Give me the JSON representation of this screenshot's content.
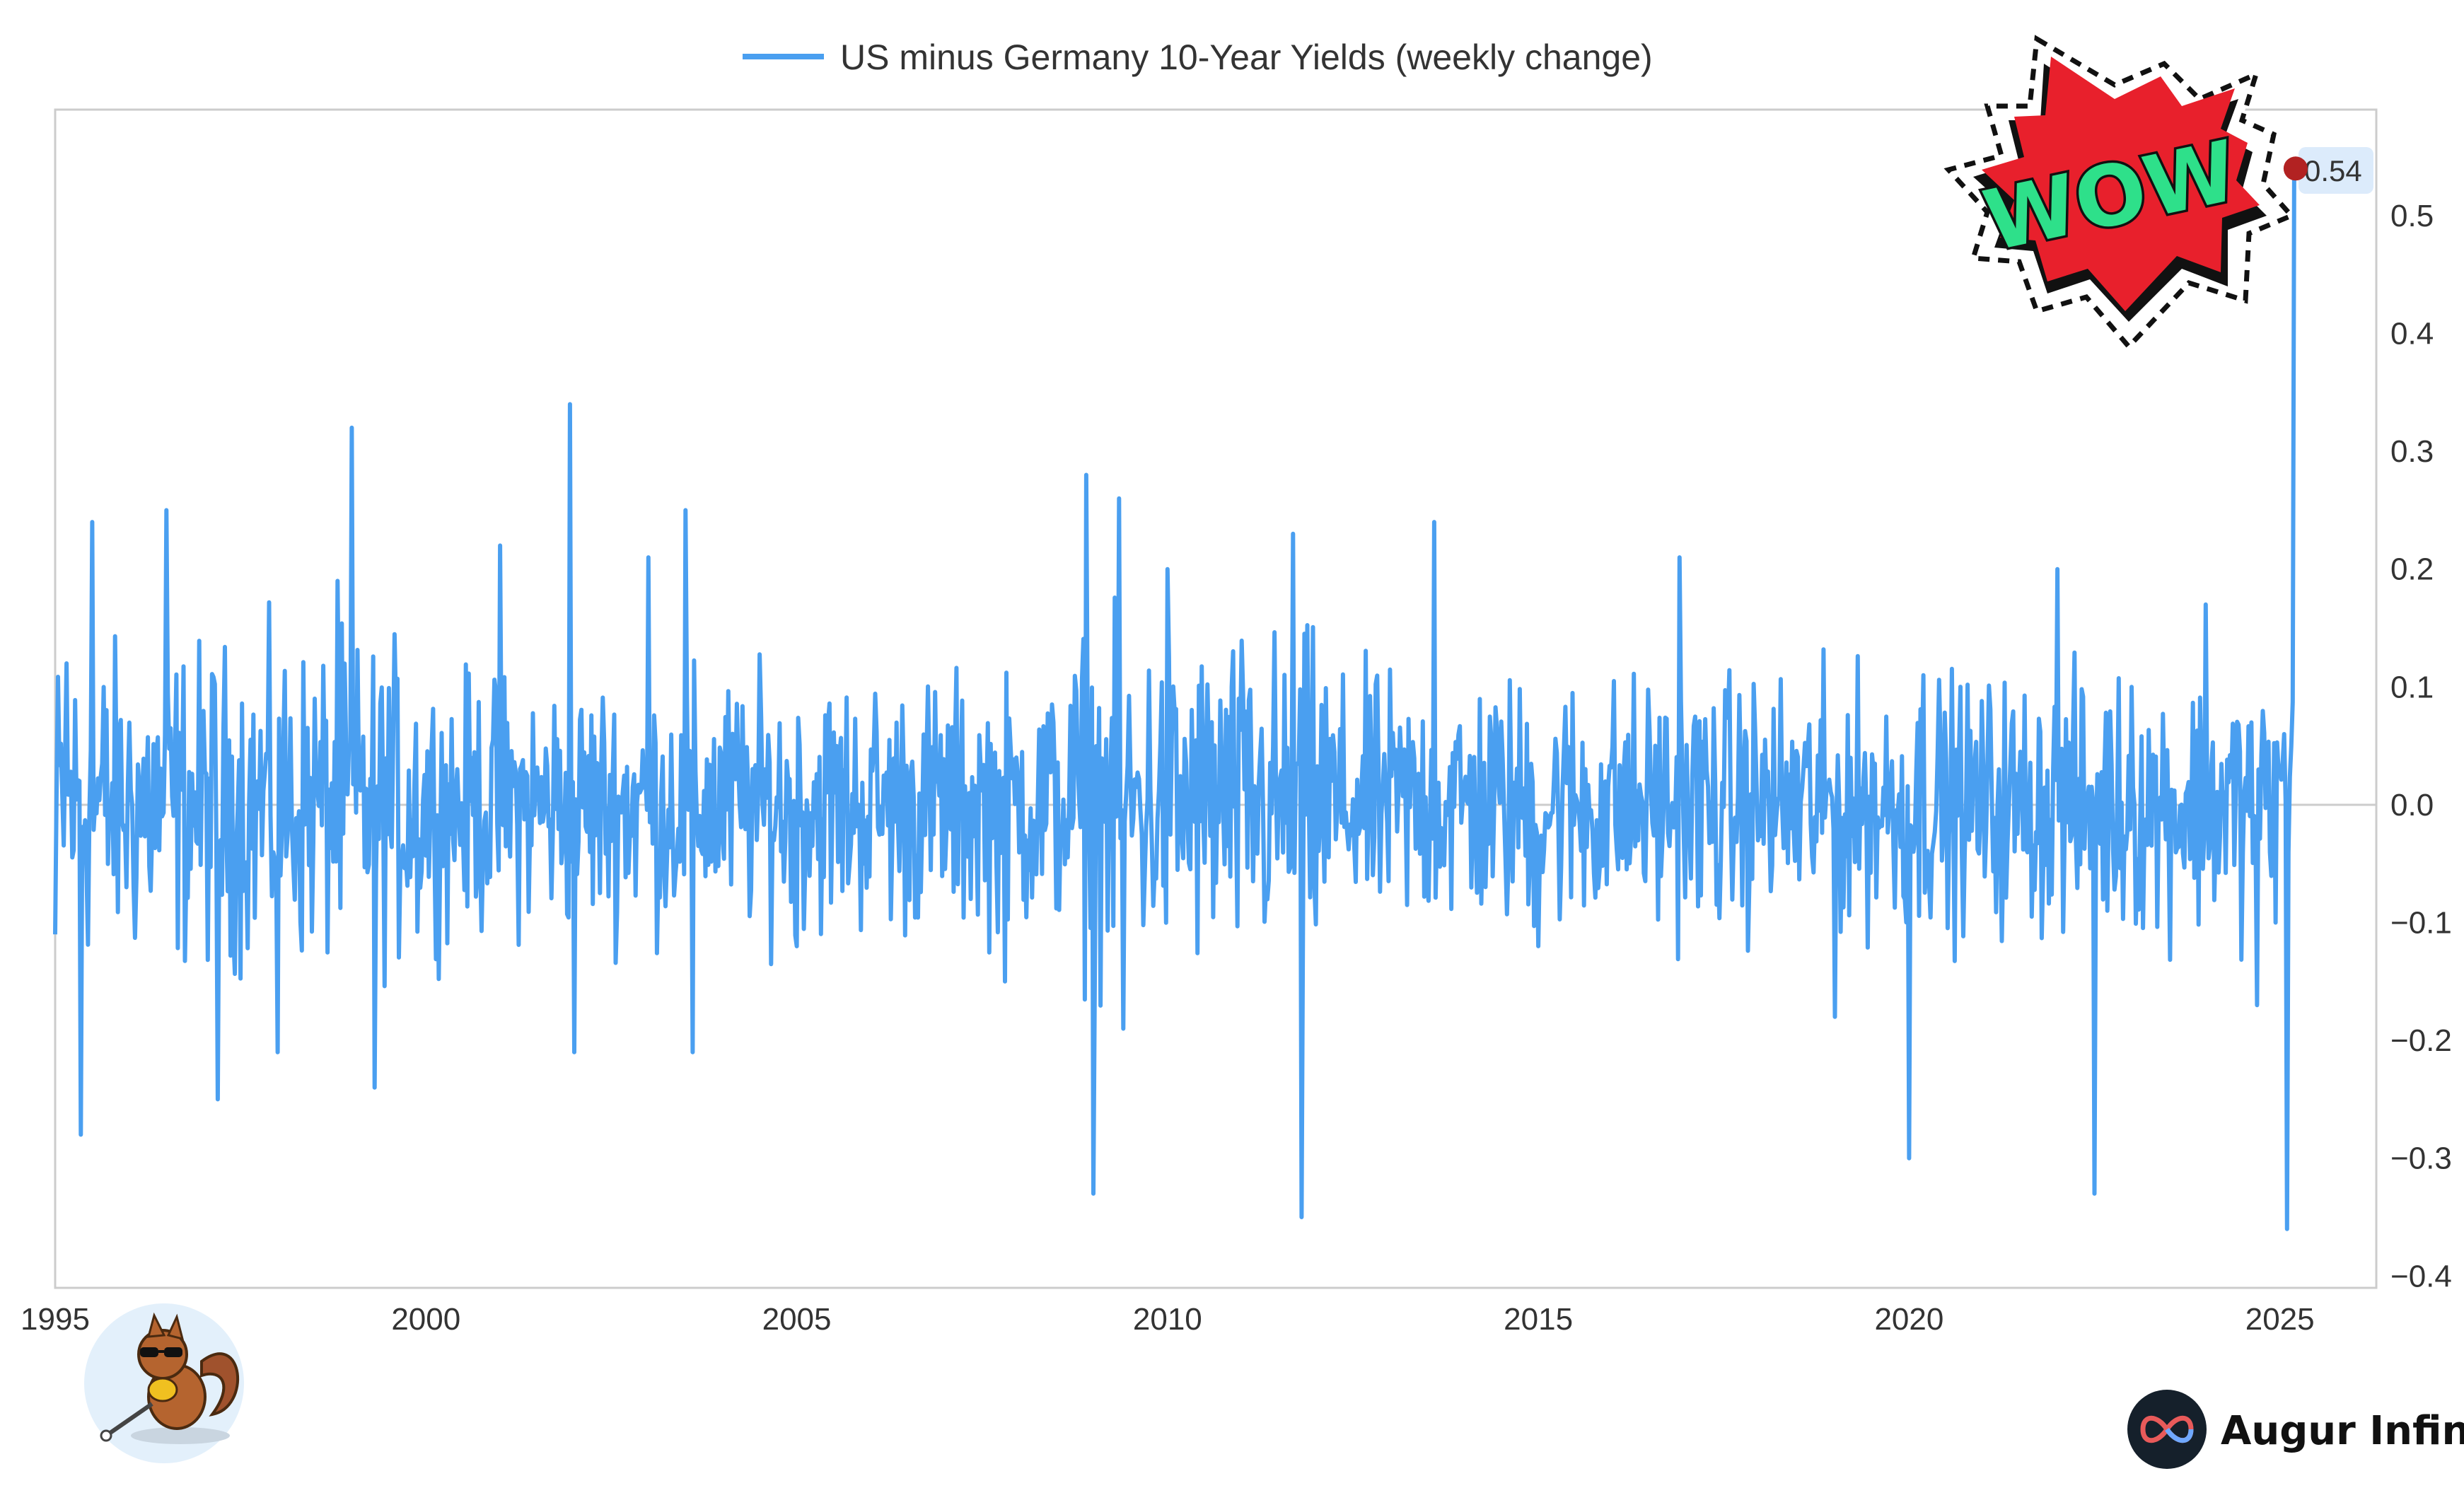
{
  "chart_data": {
    "type": "line",
    "title": "",
    "xlabel": "",
    "ylabel": "",
    "legend": {
      "position": "top-center"
    },
    "series": [
      {
        "name": "US minus Germany 10-Year Yields (weekly change)",
        "color": "#4a9ff0"
      }
    ],
    "x_ticks": [
      "1995",
      "2000",
      "2005",
      "2010",
      "2015",
      "2020",
      "2025"
    ],
    "y_ticks": [
      "0.5",
      "0.4",
      "0.3",
      "0.2",
      "0.1",
      "0.0",
      "−0.1",
      "−0.2",
      "−0.3",
      "−0.4"
    ],
    "xlim": [
      1995,
      2026.3
    ],
    "ylim": [
      -0.41,
      0.59
    ],
    "y_axis_side": "right",
    "grid": false,
    "zero_line": true,
    "last_value_label": "0.54",
    "last_value_color": "#b22222",
    "data_note_key_points": {
      "x": [
        1995.0,
        1995.15,
        1995.35,
        1995.5,
        1996.5,
        1997.2,
        1998.0,
        1998.8,
        1999.0,
        1999.3,
        2001.0,
        2001.95,
        2002.0,
        2003.0,
        2003.5,
        2003.6,
        2005.0,
        2007.8,
        2008.9,
        2009.0,
        2009.35,
        2009.4,
        2010.0,
        2011.7,
        2011.8,
        2013.6,
        2015.0,
        2016.9,
        2019.0,
        2020.0,
        2020.2,
        2022.0,
        2022.5,
        2023.0,
        2024.0,
        2024.7,
        2024.95,
        2025.05,
        2025.1,
        2025.15,
        2025.2,
        2025.22
      ]
    },
    "key_values": {
      "x": [
        1995.0,
        1995.15,
        1995.35,
        1995.5,
        1996.5,
        1997.2,
        1998.0,
        1998.8,
        1999.0,
        1999.3,
        2001.0,
        2001.95,
        2002.0,
        2003.0,
        2003.5,
        2003.6,
        2005.0,
        2007.8,
        2008.9,
        2009.0,
        2009.35,
        2009.4,
        2010.0,
        2011.7,
        2011.8,
        2013.6,
        2015.0,
        2016.9,
        2019.0,
        2020.0,
        2020.2,
        2022.0,
        2022.5,
        2023.0,
        2024.0,
        2024.7,
        2024.95,
        2025.05,
        2025.1,
        2025.15,
        2025.2,
        2025.22
      ],
      "y": [
        -0.11,
        0.12,
        -0.28,
        0.24,
        0.25,
        -0.25,
        -0.21,
        0.19,
        0.32,
        -0.24,
        0.22,
        0.34,
        -0.21,
        0.21,
        0.25,
        -0.21,
        -0.12,
        -0.15,
        0.28,
        -0.33,
        0.26,
        -0.19,
        0.2,
        0.23,
        -0.35,
        0.24,
        -0.12,
        0.21,
        -0.18,
        -0.3,
        0.11,
        0.2,
        -0.33,
        0.1,
        0.17,
        -0.17,
        -0.1,
        0.06,
        -0.36,
        0.05,
        0.54,
        0.54
      ]
    }
  },
  "decorations": {
    "sticker": {
      "text": "WOW",
      "fill": "#e8202c",
      "text_color": "#2ee08a"
    },
    "mascot": {
      "description_icon": "squirrel-mascot-icon"
    },
    "brand": {
      "name": "Augur Infinity",
      "logo_icon": "infinity-logo-icon"
    }
  }
}
